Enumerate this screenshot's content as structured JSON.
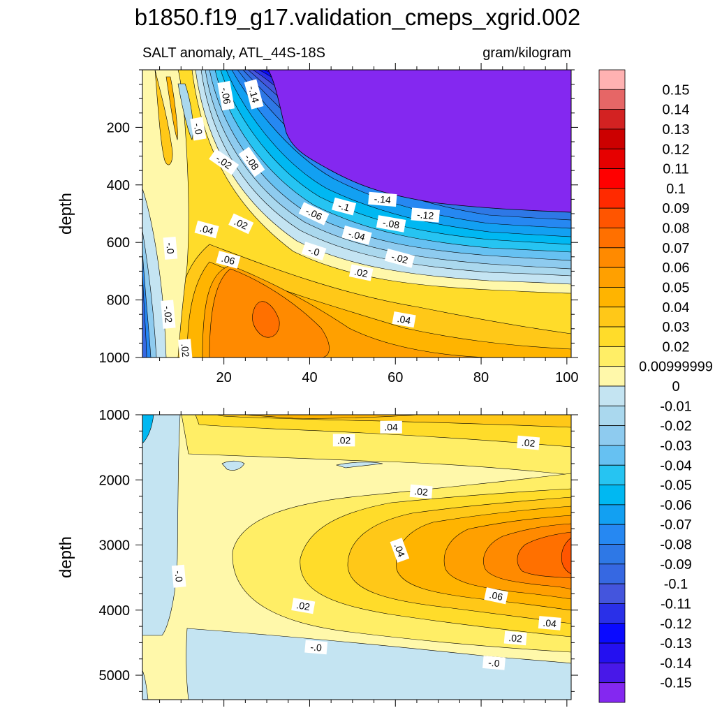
{
  "figure": {
    "title": "b1850.f19_g17.validation_cmeps_xgrid.002",
    "subtitle_left": "SALT anomaly, ATL_44S-18S",
    "subtitle_right": "gram/kilogram"
  },
  "chart_data": [
    {
      "type": "contour",
      "panel": "upper",
      "ylabel": "depth",
      "xlabel": "",
      "xlim": [
        1,
        101
      ],
      "ylim": [
        1000,
        0
      ],
      "x_ticks": [
        20,
        40,
        60,
        80,
        100
      ],
      "y_ticks": [
        200,
        400,
        600,
        800,
        1000
      ],
      "contour_labels": [
        {
          "text": "-.06",
          "x": 20.5,
          "y": 90,
          "angle": 80
        },
        {
          "text": "-.14",
          "x": 27.0,
          "y": 85,
          "angle": 75
        },
        {
          "text": "-.0",
          "x": 14.0,
          "y": 205,
          "angle": 80
        },
        {
          "text": "-.02",
          "x": 20.0,
          "y": 320,
          "angle": 35
        },
        {
          "text": "-.08",
          "x": 26.5,
          "y": 320,
          "angle": 55
        },
        {
          "text": "-.14",
          "x": 57.0,
          "y": 450,
          "angle": 5
        },
        {
          "text": "-.1",
          "x": 48.0,
          "y": 475,
          "angle": 15
        },
        {
          "text": "-.06",
          "x": 41.0,
          "y": 500,
          "angle": 25
        },
        {
          "text": "-.12",
          "x": 67.0,
          "y": 505,
          "angle": 5
        },
        {
          "text": "-.08",
          "x": 59.0,
          "y": 535,
          "angle": 10
        },
        {
          "text": "-.04",
          "x": 51.0,
          "y": 575,
          "angle": 15
        },
        {
          "text": ".04",
          "x": 16.0,
          "y": 555,
          "angle": 15
        },
        {
          "text": ".02",
          "x": 24.0,
          "y": 535,
          "angle": 25
        },
        {
          "text": "-.0",
          "x": 7.5,
          "y": 620,
          "angle": 85
        },
        {
          "text": "-.0",
          "x": 41.0,
          "y": 630,
          "angle": 18
        },
        {
          "text": ".06",
          "x": 21.0,
          "y": 660,
          "angle": 15
        },
        {
          "text": "-.02",
          "x": 61.0,
          "y": 655,
          "angle": 15
        },
        {
          "text": ".02",
          "x": 52.0,
          "y": 705,
          "angle": 12
        },
        {
          "text": "-.02",
          "x": 7.0,
          "y": 850,
          "angle": 85
        },
        {
          "text": ".04",
          "x": 62.0,
          "y": 868,
          "angle": 10
        },
        {
          "text": ".02",
          "x": 11.0,
          "y": 975,
          "angle": 85
        }
      ]
    },
    {
      "type": "contour",
      "panel": "lower",
      "ylabel": "depth",
      "xlabel": "",
      "xlim": [
        1,
        101
      ],
      "ylim": [
        5375,
        1000
      ],
      "x_ticks": [
        20,
        40,
        60,
        80,
        100
      ],
      "y_ticks": [
        1000,
        2000,
        3000,
        4000,
        5000
      ],
      "contour_labels": [
        {
          "text": ".04",
          "x": 59.0,
          "y": 1190,
          "angle": 0
        },
        {
          "text": ".02",
          "x": 48.0,
          "y": 1390,
          "angle": 0
        },
        {
          "text": ".02",
          "x": 91.0,
          "y": 1430,
          "angle": 5
        },
        {
          "text": ".02",
          "x": 66.0,
          "y": 2180,
          "angle": 5
        },
        {
          "text": ".04",
          "x": 61.0,
          "y": 3080,
          "angle": 70
        },
        {
          "text": "-.0",
          "x": 9.5,
          "y": 3480,
          "angle": 85
        },
        {
          "text": ".02",
          "x": 38.5,
          "y": 3935,
          "angle": 10
        },
        {
          "text": ".06",
          "x": 83.5,
          "y": 3780,
          "angle": 12
        },
        {
          "text": ".04",
          "x": 96.0,
          "y": 4200,
          "angle": 5
        },
        {
          "text": ".02",
          "x": 88.0,
          "y": 4430,
          "angle": 5
        },
        {
          "text": "-.0",
          "x": 41.5,
          "y": 4570,
          "angle": 5
        },
        {
          "text": "-.0",
          "x": 83.0,
          "y": 4810,
          "angle": 5
        }
      ]
    }
  ],
  "colorbar": {
    "levels": [
      "0.15",
      "0.14",
      "0.13",
      "0.12",
      "0.11",
      "0.1",
      "0.09",
      "0.08",
      "0.07",
      "0.06",
      "0.05",
      "0.04",
      "0.03",
      "0.02",
      "0.00999999",
      "0",
      "-0.01",
      "-0.02",
      "-0.03",
      "-0.04",
      "-0.05",
      "-0.06",
      "-0.07",
      "-0.08",
      "-0.09",
      "-0.1",
      "-0.11",
      "-0.12",
      "-0.13",
      "-0.14",
      "-0.15"
    ],
    "colors": [
      "#ffb2b2",
      "#e66666",
      "#d32222",
      "#cc0000",
      "#e60000",
      "#ff0000",
      "#ff2a00",
      "#ff5500",
      "#ff7000",
      "#ff8a00",
      "#ffa000",
      "#ffb400",
      "#ffc818",
      "#ffdc2a",
      "#ffee66",
      "#fff8aa",
      "#c4e4f2",
      "#aad8ee",
      "#8ecbef",
      "#66c1f2",
      "#26c4f2",
      "#00b8f2",
      "#12a0f2",
      "#2688f2",
      "#2e78e6",
      "#3668e2",
      "#4455dd",
      "#2a30e8",
      "#0a0aff",
      "#2410f0",
      "#4818e8",
      "#8428f0"
    ]
  }
}
